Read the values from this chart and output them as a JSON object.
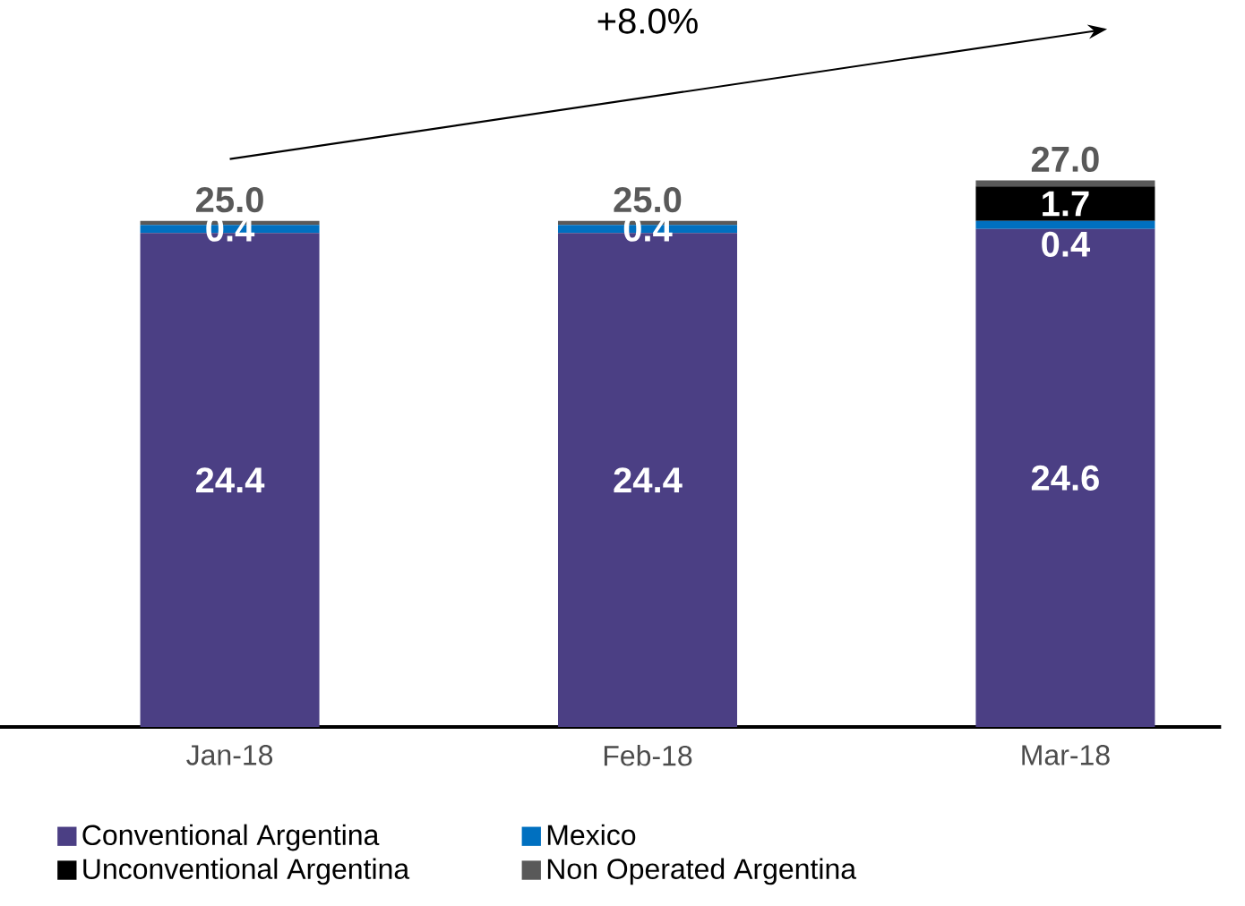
{
  "chart_data": {
    "type": "bar",
    "stacked": true,
    "categories": [
      "Jan-18",
      "Feb-18",
      "Mar-18"
    ],
    "series": [
      {
        "name": "Conventional Argentina",
        "color": "#4b3f84",
        "values": [
          24.4,
          24.4,
          24.6
        ],
        "value_labels": [
          "24.4",
          "24.4",
          "24.6"
        ]
      },
      {
        "name": "Mexico",
        "color": "#0070c0",
        "values": [
          0.4,
          0.4,
          0.4
        ],
        "value_labels": [
          "0.4",
          "0.4",
          "0.4"
        ]
      },
      {
        "name": "Unconventional Argentina",
        "color": "#000000",
        "values": [
          0,
          0,
          1.7
        ],
        "value_labels": [
          null,
          null,
          "1.7"
        ]
      },
      {
        "name": "Non Operated Argentina",
        "color": "#595959",
        "values": [
          0.2,
          0.2,
          0.3
        ],
        "value_labels": [
          null,
          null,
          null
        ]
      }
    ],
    "totals": [
      "25.0",
      "25.0",
      "27.0"
    ],
    "annotations": [
      "+8.0%"
    ],
    "legend": "bottom"
  }
}
